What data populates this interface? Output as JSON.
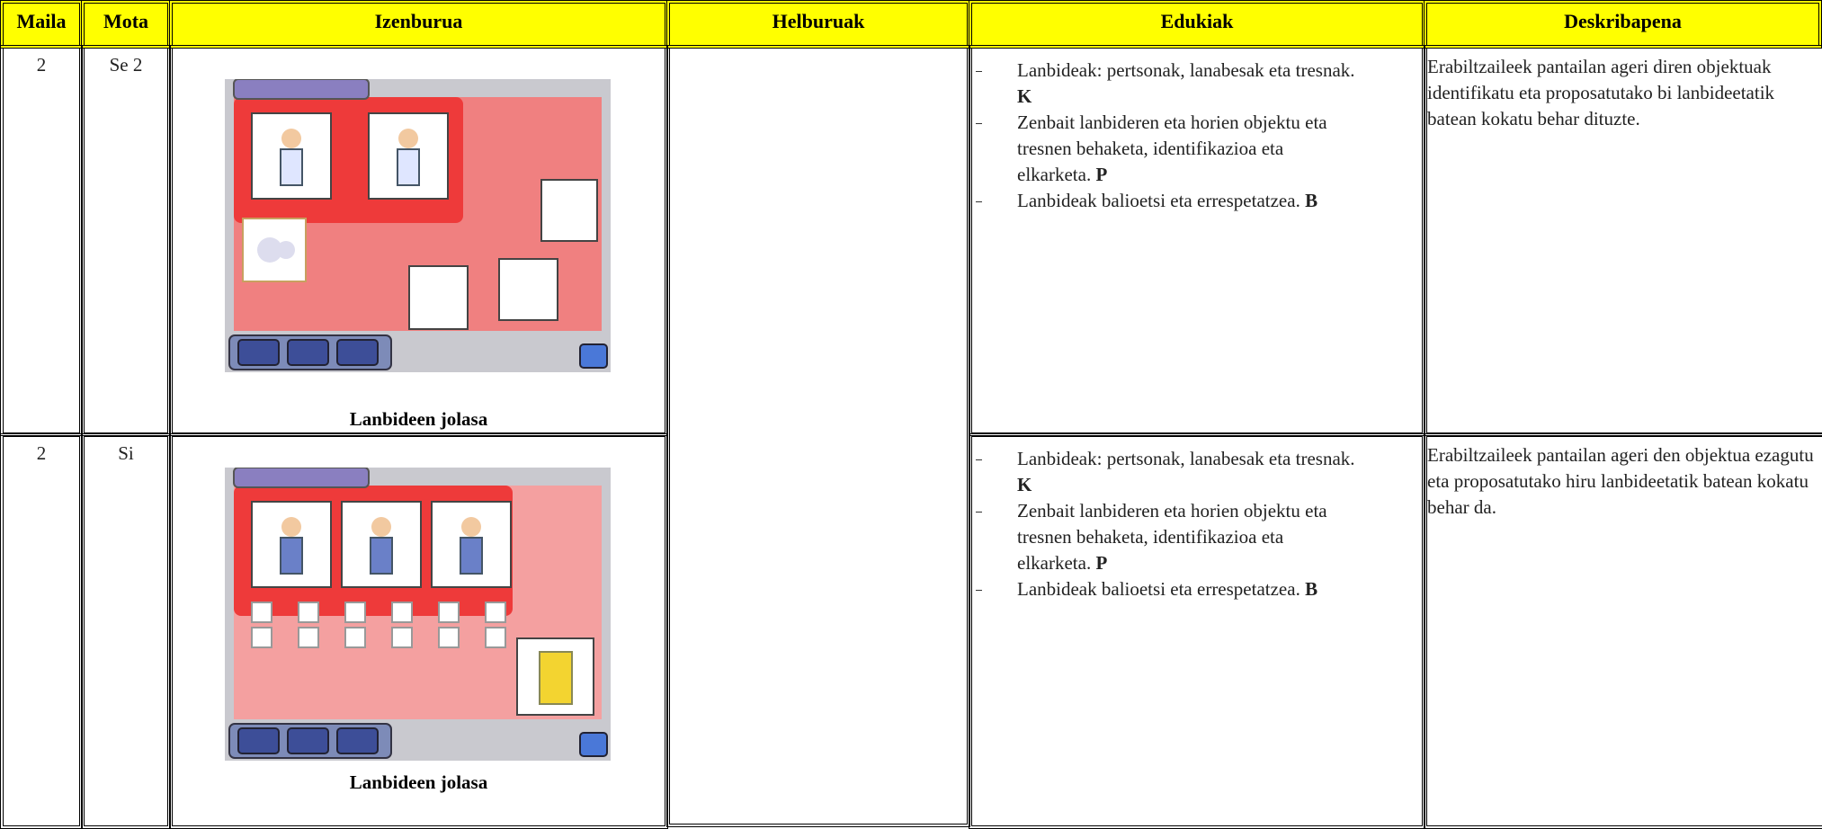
{
  "header": [
    "Maila",
    "Mota",
    "Izenburua",
    "Helburuak",
    "Edukiak",
    "Deskribapena"
  ],
  "rows": [
    {
      "maila": "2",
      "mota": "Se 2",
      "izenburua": "Lanbideen jolasa",
      "edukiak": [
        {
          "text": "Lanbideak: pertsonak, lanabesak eta tresnak.",
          "tag": "K"
        },
        {
          "text": "Zenbait lanbideren eta horien objektu eta tresnen behaketa, identifikazioa eta elkarketa.",
          "tag": "P"
        },
        {
          "text": "Lanbideak balioetsi eta errespetatzea.",
          "tag": "B"
        }
      ],
      "deskribapena": "Erabiltzaileek pantailan ageri diren objektuak identifikatu eta proposatutako bi lanbideetatik batean kokatu behar dituzte."
    },
    {
      "maila": "2",
      "mota": "Si",
      "izenburua": "Lanbideen jolasa",
      "edukiak": [
        {
          "text": "Lanbideak: pertsonak, lanabesak eta tresnak.",
          "tag": "K"
        },
        {
          "text": "Zenbait lanbideren eta horien objektu eta tresnen behaketa, identifikazioa eta elkarketa.",
          "tag": "P"
        },
        {
          "text": "Lanbideak balioetsi eta errespetatzea.",
          "tag": "B"
        }
      ],
      "deskribapena": "Erabiltzaileek pantailan ageri den objektua ezagutu eta proposatutako hiru lanbideetatik batean kokatu behar da."
    }
  ]
}
